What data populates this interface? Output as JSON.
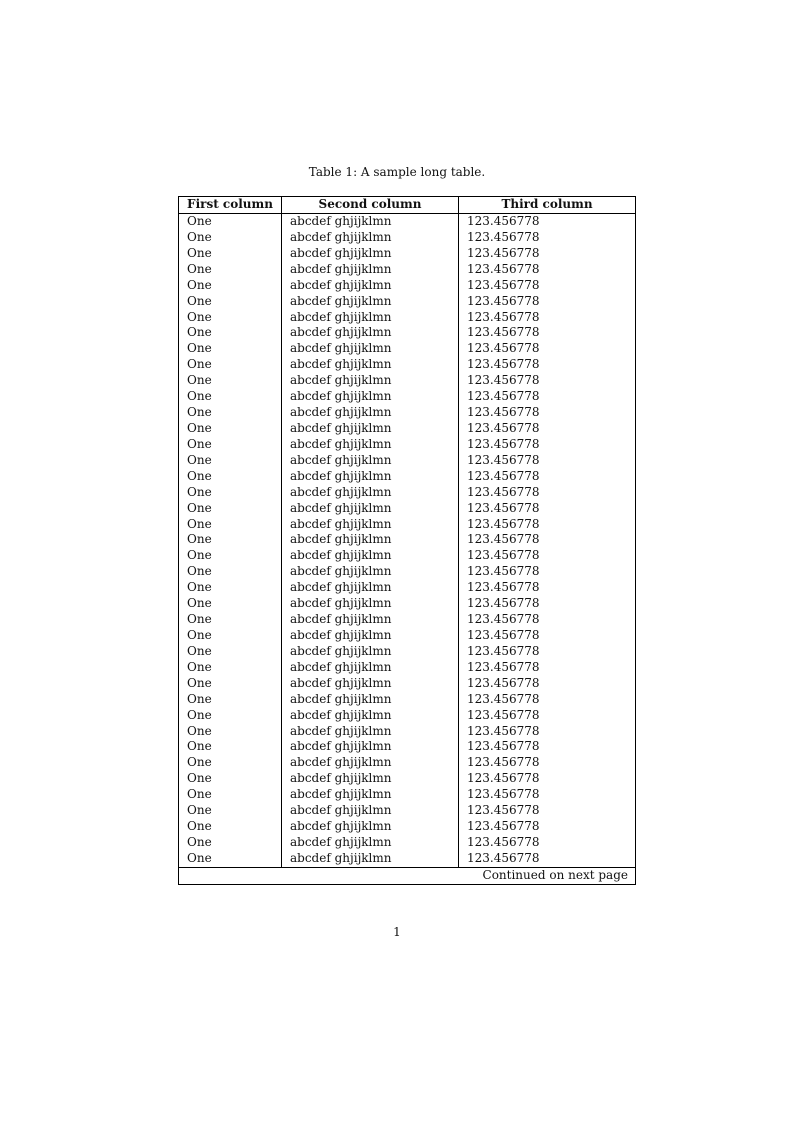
{
  "caption": "Table 1: A sample long table.",
  "table": {
    "headers": [
      "First column",
      "Second column",
      "Third column"
    ],
    "rows": [
      [
        "One",
        "abcdef ghjijklmn",
        "123.456778"
      ],
      [
        "One",
        "abcdef ghjijklmn",
        "123.456778"
      ],
      [
        "One",
        "abcdef ghjijklmn",
        "123.456778"
      ],
      [
        "One",
        "abcdef ghjijklmn",
        "123.456778"
      ],
      [
        "One",
        "abcdef ghjijklmn",
        "123.456778"
      ],
      [
        "One",
        "abcdef ghjijklmn",
        "123.456778"
      ],
      [
        "One",
        "abcdef ghjijklmn",
        "123.456778"
      ],
      [
        "One",
        "abcdef ghjijklmn",
        "123.456778"
      ],
      [
        "One",
        "abcdef ghjijklmn",
        "123.456778"
      ],
      [
        "One",
        "abcdef ghjijklmn",
        "123.456778"
      ],
      [
        "One",
        "abcdef ghjijklmn",
        "123.456778"
      ],
      [
        "One",
        "abcdef ghjijklmn",
        "123.456778"
      ],
      [
        "One",
        "abcdef ghjijklmn",
        "123.456778"
      ],
      [
        "One",
        "abcdef ghjijklmn",
        "123.456778"
      ],
      [
        "One",
        "abcdef ghjijklmn",
        "123.456778"
      ],
      [
        "One",
        "abcdef ghjijklmn",
        "123.456778"
      ],
      [
        "One",
        "abcdef ghjijklmn",
        "123.456778"
      ],
      [
        "One",
        "abcdef ghjijklmn",
        "123.456778"
      ],
      [
        "One",
        "abcdef ghjijklmn",
        "123.456778"
      ],
      [
        "One",
        "abcdef ghjijklmn",
        "123.456778"
      ],
      [
        "One",
        "abcdef ghjijklmn",
        "123.456778"
      ],
      [
        "One",
        "abcdef ghjijklmn",
        "123.456778"
      ],
      [
        "One",
        "abcdef ghjijklmn",
        "123.456778"
      ],
      [
        "One",
        "abcdef ghjijklmn",
        "123.456778"
      ],
      [
        "One",
        "abcdef ghjijklmn",
        "123.456778"
      ],
      [
        "One",
        "abcdef ghjijklmn",
        "123.456778"
      ],
      [
        "One",
        "abcdef ghjijklmn",
        "123.456778"
      ],
      [
        "One",
        "abcdef ghjijklmn",
        "123.456778"
      ],
      [
        "One",
        "abcdef ghjijklmn",
        "123.456778"
      ],
      [
        "One",
        "abcdef ghjijklmn",
        "123.456778"
      ],
      [
        "One",
        "abcdef ghjijklmn",
        "123.456778"
      ],
      [
        "One",
        "abcdef ghjijklmn",
        "123.456778"
      ],
      [
        "One",
        "abcdef ghjijklmn",
        "123.456778"
      ],
      [
        "One",
        "abcdef ghjijklmn",
        "123.456778"
      ],
      [
        "One",
        "abcdef ghjijklmn",
        "123.456778"
      ],
      [
        "One",
        "abcdef ghjijklmn",
        "123.456778"
      ],
      [
        "One",
        "abcdef ghjijklmn",
        "123.456778"
      ],
      [
        "One",
        "abcdef ghjijklmn",
        "123.456778"
      ],
      [
        "One",
        "abcdef ghjijklmn",
        "123.456778"
      ],
      [
        "One",
        "abcdef ghjijklmn",
        "123.456778"
      ],
      [
        "One",
        "abcdef ghjijklmn",
        "123.456778"
      ]
    ],
    "footer": "Continued on next page"
  },
  "page_number": "1"
}
